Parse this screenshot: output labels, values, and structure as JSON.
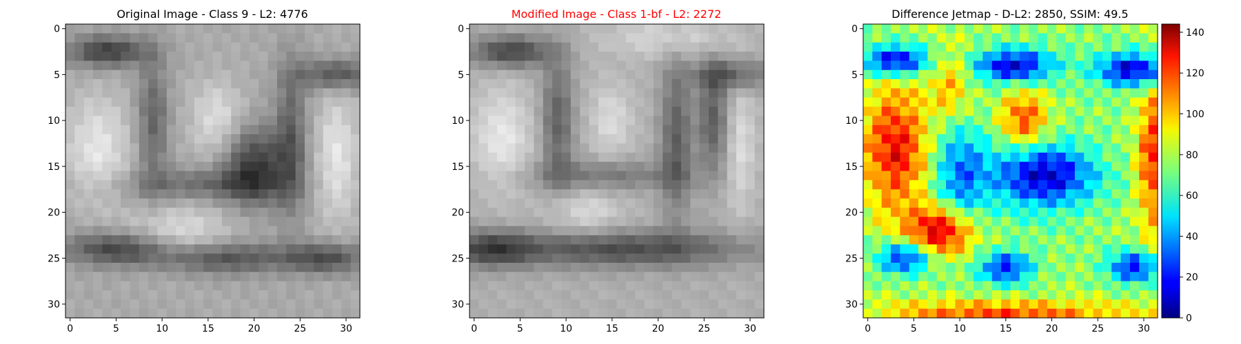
{
  "chart_data": [
    {
      "type": "heatmap",
      "title": "Original Image - Class 9 - L2: 4776",
      "title_color": "#000000",
      "colormap": "gray",
      "xlim": [
        -0.5,
        31.5
      ],
      "ylim": [
        31.5,
        -0.5
      ],
      "xticks": [
        0,
        5,
        10,
        15,
        20,
        25,
        30
      ],
      "yticks": [
        0,
        5,
        10,
        15,
        20,
        25,
        30
      ],
      "description_grid_size": [
        32,
        32
      ]
    },
    {
      "type": "heatmap",
      "title": "Modified Image - Class 1-bf - L2: 2272",
      "title_color": "#ff0000",
      "colormap": "gray",
      "xlim": [
        -0.5,
        31.5
      ],
      "ylim": [
        31.5,
        -0.5
      ],
      "xticks": [
        0,
        5,
        10,
        15,
        20,
        25,
        30
      ],
      "yticks": [
        0,
        5,
        10,
        15,
        20,
        25,
        30
      ],
      "description_grid_size": [
        32,
        32
      ]
    },
    {
      "type": "heatmap",
      "title": "Difference Jetmap - D-L2: 2850, SSIM: 49.5",
      "title_color": "#000000",
      "colormap": "jet",
      "xlim": [
        -0.5,
        31.5
      ],
      "ylim": [
        31.5,
        -0.5
      ],
      "xticks": [
        0,
        5,
        10,
        15,
        20,
        25,
        30
      ],
      "yticks": [
        0,
        5,
        10,
        15,
        20,
        25,
        30
      ],
      "colorbar": {
        "range": [
          0,
          144
        ],
        "ticks": [
          0,
          20,
          40,
          60,
          80,
          100,
          120,
          140
        ]
      }
    }
  ]
}
